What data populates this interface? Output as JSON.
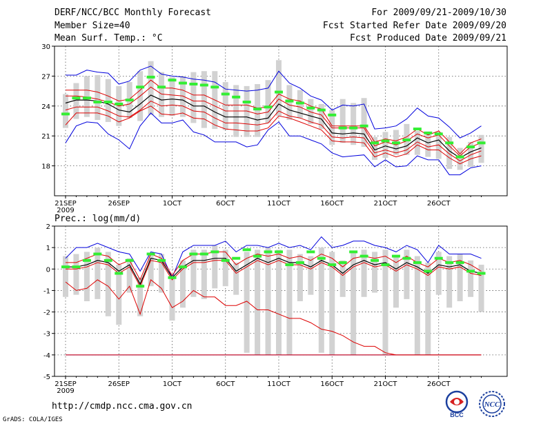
{
  "header": {
    "title": "DERF/NCC/BCC Monthly Forecast",
    "member": "Member Size=40",
    "var1": "Mean Surf. Temp.: °C",
    "period": "For 2009/09/21-2009/10/30",
    "started": "Fcst Started Refer Date 2009/09/20",
    "produced": "Fcst Produced Date 2009/09/21"
  },
  "panel2_label": "Prec.: log(mm/d)",
  "footer": {
    "url": "http://cmdp.ncc.cma.gov.cn",
    "credit": "GrADS: COLA/IGES",
    "logo1": "BCC",
    "logo2": "NCC"
  },
  "colors": {
    "max": "#0000dd",
    "pct": "#dd0000",
    "mean": "#000000",
    "obs": "#33ee33",
    "box": "#d2d2d2",
    "grid": "#555555"
  },
  "xticks": [
    "21SEP",
    "26SEP",
    "1OCT",
    "6OCT",
    "11OCT",
    "16OCT",
    "21OCT",
    "26OCT"
  ],
  "year": "2009",
  "chart_data": [
    {
      "type": "line",
      "title": "Mean Surf. Temp.: °C",
      "days": 40,
      "ylim": [
        15,
        30
      ],
      "yticks": [
        18,
        21,
        24,
        27,
        30
      ],
      "series": [
        {
          "name": "max",
          "values": [
            27.1,
            27.1,
            27.6,
            27.4,
            27.3,
            26.2,
            26.5,
            27.6,
            28.0,
            27.2,
            27.0,
            26.9,
            26.7,
            26.6,
            26.4,
            25.7,
            25.6,
            25.5,
            25.6,
            25.8,
            27.5,
            26.3,
            25.8,
            25.0,
            24.6,
            23.6,
            24.1,
            24.0,
            24.2,
            21.7,
            21.8,
            22.0,
            22.7,
            23.8,
            23.0,
            22.8,
            21.9,
            20.8,
            21.3,
            22.0
          ]
        },
        {
          "name": "p90",
          "values": [
            25.6,
            25.6,
            25.6,
            25.4,
            25.0,
            24.5,
            24.7,
            25.6,
            26.6,
            25.8,
            25.8,
            25.6,
            25.1,
            25.1,
            24.6,
            24.1,
            24.1,
            24.1,
            23.8,
            23.9,
            25.2,
            24.7,
            24.5,
            24.0,
            23.7,
            22.0,
            22.0,
            22.0,
            22.0,
            20.4,
            20.7,
            20.5,
            20.9,
            21.7,
            21.1,
            21.5,
            20.4,
            19.2,
            20.3,
            20.7
          ]
        },
        {
          "name": "p75",
          "values": [
            25.0,
            25.0,
            24.9,
            24.7,
            24.4,
            24.0,
            24.2,
            25.0,
            25.9,
            25.2,
            25.1,
            25.0,
            24.5,
            24.5,
            24.0,
            23.5,
            23.5,
            23.5,
            23.2,
            23.4,
            24.7,
            24.1,
            23.9,
            23.4,
            23.1,
            21.8,
            21.8,
            21.8,
            21.8,
            20.0,
            20.4,
            20.1,
            20.5,
            21.2,
            20.8,
            21.1,
            20.0,
            19.0,
            19.9,
            20.3
          ]
        },
        {
          "name": "mean",
          "values": [
            24.3,
            24.6,
            24.6,
            24.5,
            24.2,
            23.6,
            23.4,
            24.2,
            25.1,
            24.6,
            24.7,
            24.6,
            24.0,
            24.0,
            23.4,
            22.9,
            22.9,
            22.9,
            22.6,
            22.8,
            24.2,
            23.6,
            23.3,
            23.0,
            22.7,
            21.3,
            21.2,
            21.3,
            21.2,
            19.6,
            20.0,
            19.7,
            20.0,
            20.8,
            20.3,
            20.6,
            19.5,
            18.8,
            19.4,
            19.8
          ]
        },
        {
          "name": "p25",
          "values": [
            23.6,
            23.9,
            23.9,
            23.9,
            23.5,
            23.0,
            22.9,
            23.6,
            24.5,
            24.0,
            24.1,
            24.0,
            23.5,
            23.4,
            22.8,
            22.3,
            22.3,
            22.2,
            22.1,
            22.3,
            23.5,
            23.0,
            22.8,
            22.4,
            22.1,
            20.9,
            20.8,
            20.9,
            20.8,
            19.3,
            19.6,
            19.3,
            19.6,
            20.4,
            19.9,
            20.1,
            19.2,
            18.5,
            19.1,
            19.5
          ]
        },
        {
          "name": "p10",
          "values": [
            22.1,
            23.3,
            23.3,
            23.3,
            23.0,
            22.4,
            22.8,
            23.5,
            24.0,
            23.2,
            23.1,
            23.3,
            22.8,
            22.7,
            22.1,
            21.7,
            21.6,
            21.5,
            21.5,
            21.8,
            23.0,
            22.8,
            22.4,
            22.0,
            21.6,
            20.5,
            20.4,
            20.4,
            20.3,
            18.9,
            19.3,
            18.9,
            19.2,
            20.1,
            19.6,
            19.6,
            18.8,
            18.2,
            18.7,
            19.0
          ]
        },
        {
          "name": "min",
          "values": [
            20.3,
            22.0,
            22.4,
            22.3,
            21.2,
            20.6,
            19.7,
            22.0,
            23.3,
            22.3,
            22.3,
            22.6,
            21.4,
            21.1,
            20.4,
            20.4,
            20.4,
            19.9,
            20.1,
            21.6,
            22.4,
            21.0,
            21.0,
            20.6,
            20.2,
            19.3,
            18.9,
            19.0,
            19.1,
            17.9,
            18.6,
            17.9,
            18.0,
            19.0,
            18.6,
            18.6,
            17.1,
            17.1,
            17.8,
            18.0
          ]
        },
        {
          "name": "box_high",
          "values": [
            25.2,
            26.3,
            27.0,
            27.1,
            26.7,
            26.0,
            26.4,
            27.5,
            28.5,
            27.4,
            26.9,
            27.0,
            27.4,
            27.5,
            27.5,
            26.4,
            26.1,
            26.0,
            26.2,
            26.6,
            28.6,
            26.1,
            25.6,
            24.7,
            24.2,
            23.6,
            24.7,
            24.3,
            24.8,
            20.9,
            21.4,
            21.6,
            22.2,
            21.5,
            21.4,
            21.4,
            20.9,
            19.8,
            20.4,
            21.1
          ]
        },
        {
          "name": "box_low",
          "values": [
            21.8,
            22.7,
            22.9,
            22.6,
            22.4,
            22.0,
            22.8,
            22.5,
            23.1,
            22.9,
            23.0,
            22.9,
            22.3,
            21.8,
            21.7,
            21.6,
            20.9,
            20.9,
            20.9,
            22.3,
            23.0,
            22.6,
            22.8,
            22.2,
            21.7,
            20.1,
            20.3,
            20.1,
            19.9,
            18.6,
            18.8,
            19.1,
            19.1,
            19.1,
            18.9,
            18.7,
            17.7,
            17.6,
            17.9,
            18.3
          ]
        },
        {
          "name": "observed",
          "values": [
            23.2,
            24.8,
            24.8,
            24.4,
            24.4,
            24.2,
            24.6,
            25.9,
            26.9,
            25.9,
            26.6,
            26.3,
            26.2,
            26.1,
            25.9,
            25.2,
            24.9,
            24.4,
            23.7,
            23.9,
            25.4,
            24.5,
            24.3,
            23.8,
            23.6,
            23.1,
            21.8,
            21.8,
            22.0,
            20.3,
            20.5,
            20.3,
            20.6,
            21.7,
            21.3,
            21.2,
            20.3,
            18.9,
            19.9,
            20.3
          ]
        }
      ]
    },
    {
      "type": "line",
      "title": "Prec.: log(mm/d)",
      "days": 40,
      "ylim": [
        -5,
        2
      ],
      "yticks": [
        -5,
        -4,
        -3,
        -2,
        -1,
        0,
        1,
        2
      ],
      "series": [
        {
          "name": "max",
          "values": [
            0.5,
            1.0,
            1.0,
            1.2,
            1.0,
            0.8,
            0.7,
            -0.1,
            0.8,
            0.7,
            -0.4,
            0.8,
            1.1,
            1.1,
            1.1,
            1.3,
            0.8,
            1.1,
            1.1,
            1.0,
            1.2,
            1.0,
            1.1,
            0.9,
            1.5,
            1.0,
            1.1,
            1.3,
            1.3,
            1.1,
            1.0,
            0.8,
            1.1,
            0.9,
            0.3,
            1.1,
            0.7,
            0.7,
            0.7,
            0.5
          ]
        },
        {
          "name": "p90",
          "values": [
            0.3,
            0.3,
            0.5,
            0.7,
            0.6,
            0.2,
            0.4,
            -0.5,
            0.7,
            0.5,
            -0.3,
            0.4,
            0.7,
            0.7,
            0.8,
            0.8,
            0.2,
            0.5,
            0.7,
            0.6,
            0.7,
            0.5,
            0.6,
            0.4,
            0.7,
            0.5,
            0.1,
            0.5,
            0.6,
            0.5,
            0.6,
            0.3,
            0.6,
            0.3,
            0.1,
            0.5,
            0.3,
            0.4,
            0.2,
            -0.1
          ]
        },
        {
          "name": "mean",
          "values": [
            0.1,
            0.1,
            0.2,
            0.4,
            0.3,
            -0.1,
            0.2,
            -0.7,
            0.5,
            0.4,
            -0.4,
            0.1,
            0.4,
            0.4,
            0.5,
            0.5,
            -0.1,
            0.2,
            0.5,
            0.3,
            0.5,
            0.3,
            0.3,
            0.1,
            0.4,
            0.2,
            -0.2,
            0.2,
            0.4,
            0.2,
            0.3,
            0.0,
            0.3,
            0.1,
            -0.2,
            0.2,
            0.1,
            0.2,
            -0.1,
            -0.2
          ]
        },
        {
          "name": "p75",
          "values": [
            0.0,
            0.0,
            0.1,
            0.3,
            0.2,
            -0.2,
            0.1,
            -0.8,
            0.4,
            0.3,
            -0.5,
            0.0,
            0.3,
            0.3,
            0.4,
            0.4,
            -0.2,
            0.1,
            0.4,
            0.2,
            0.4,
            0.2,
            0.2,
            0.0,
            0.3,
            0.1,
            -0.3,
            0.1,
            0.3,
            0.1,
            0.2,
            -0.1,
            0.2,
            0.0,
            -0.3,
            0.1,
            0.0,
            0.1,
            -0.2,
            -0.3
          ]
        },
        {
          "name": "p25",
          "values": [
            -0.6,
            -1.0,
            -0.9,
            -0.5,
            -0.8,
            -1.4,
            -0.8,
            -2.1,
            -0.5,
            -0.9,
            -1.8,
            -1.5,
            -1.0,
            -1.3,
            -1.3,
            -1.7,
            -1.7,
            -1.5,
            -1.9,
            -1.9,
            -2.1,
            -2.3,
            -2.3,
            -2.5,
            -2.8,
            -2.9,
            -3.1,
            -3.4,
            -3.6,
            -3.6,
            -3.9,
            -4.0,
            -4.0,
            -4.0,
            -4.0,
            -4.0,
            -4.0,
            -4.0,
            -4.0,
            -4.0
          ]
        },
        {
          "name": "p10",
          "values": [
            -4.0,
            -4.0,
            -4.0,
            -4.0,
            -4.0,
            -4.0,
            -4.0,
            -4.0,
            -4.0,
            -4.0,
            -4.0,
            -4.0,
            -4.0,
            -4.0,
            -4.0,
            -4.0,
            -4.0,
            -4.0,
            -4.0,
            -4.0,
            -4.0,
            -4.0,
            -4.0,
            -4.0,
            -4.0,
            -4.0,
            -4.0,
            -4.0,
            -4.0,
            -4.0,
            -4.0,
            -4.0,
            -4.0,
            -4.0,
            -4.0,
            -4.0,
            -4.0,
            -4.0,
            -4.0,
            -4.0
          ]
        },
        {
          "name": "min",
          "values": [
            -4.0,
            -4.0,
            -4.0,
            -4.0,
            -4.0,
            -4.0,
            -4.0,
            -4.0,
            -4.0,
            -4.0,
            -4.0,
            -4.0,
            -4.0,
            -4.0,
            -4.0,
            -4.0,
            -4.0,
            -4.0,
            -4.0,
            -4.0,
            -4.0,
            -4.0,
            -4.0,
            -4.0,
            -4.0,
            -4.0,
            -4.0,
            -4.0,
            -4.0,
            -4.0,
            -4.0,
            -4.0,
            -4.0,
            -4.0,
            -4.0,
            -4.0,
            -4.0,
            -4.0,
            -4.0,
            -4.0
          ]
        },
        {
          "name": "box_high",
          "values": [
            0.6,
            0.7,
            0.8,
            1.0,
            0.8,
            0.2,
            0.5,
            -0.4,
            0.7,
            0.7,
            -0.3,
            0.4,
            0.9,
            0.9,
            1.1,
            0.9,
            0.3,
            0.8,
            0.9,
            1.0,
            0.9,
            0.9,
            0.7,
            0.6,
            1.0,
            0.8,
            0.4,
            0.8,
            0.9,
            0.8,
            0.9,
            0.6,
            0.9,
            0.6,
            0.3,
            0.8,
            0.6,
            0.7,
            0.4,
            0.2
          ]
        },
        {
          "name": "box_low",
          "values": [
            -1.3,
            -1.2,
            -1.5,
            -1.4,
            -2.2,
            -2.6,
            -1.1,
            -2.2,
            -0.8,
            -1.1,
            -2.4,
            -1.8,
            -1.3,
            -1.4,
            -0.9,
            -0.8,
            -1.2,
            -3.9,
            -4.0,
            -4.0,
            -4.0,
            -4.0,
            -1.5,
            -1.2,
            -3.9,
            -4.0,
            -1.3,
            -4.0,
            -1.3,
            -1.1,
            -4.0,
            -1.8,
            -1.4,
            -4.0,
            -4.0,
            -1.2,
            -1.8,
            -1.5,
            -1.3,
            -2.0
          ]
        },
        {
          "name": "observed",
          "values": [
            0.1,
            0.1,
            0.4,
            0.7,
            0.4,
            -0.2,
            0.4,
            -0.8,
            0.7,
            0.4,
            -0.4,
            0.1,
            0.7,
            0.7,
            0.8,
            0.4,
            0.5,
            0.9,
            0.6,
            0.8,
            0.8,
            0.2,
            0.3,
            0.8,
            0.5,
            0.2,
            0.3,
            0.8,
            0.6,
            0.4,
            0.2,
            0.6,
            0.5,
            0.3,
            -0.1,
            0.5,
            0.3,
            0.3,
            -0.1,
            -0.2
          ]
        }
      ]
    }
  ]
}
